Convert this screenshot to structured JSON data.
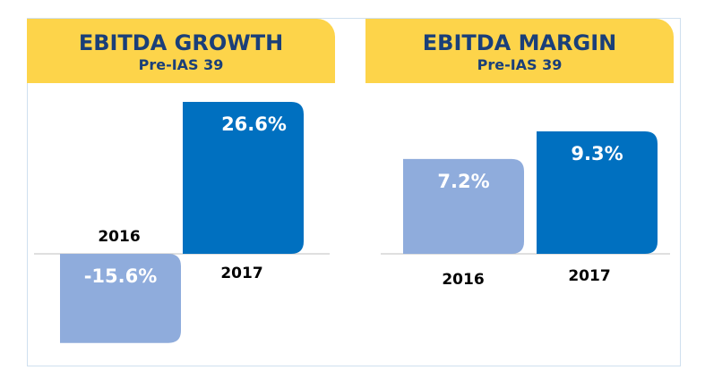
{
  "colors": {
    "header_bg": "#fdd44a",
    "header_text": "#1a3f79",
    "bar_2016": "#8facdc",
    "bar_2017": "#0070c0",
    "border": "#cfe0ef",
    "axis": "#bfbfbf"
  },
  "chart_data": [
    {
      "type": "bar",
      "title": "EBITDA GROWTH",
      "subtitle": "Pre-IAS 39",
      "categories": [
        "2016",
        "2017"
      ],
      "values": [
        -15.6,
        26.6
      ],
      "data_labels": [
        "-15.6%",
        "26.6%"
      ],
      "bar_colors": [
        "#8facdc",
        "#0070c0"
      ],
      "ylim": [
        -20,
        26.6
      ],
      "grid": false,
      "legend": "none"
    },
    {
      "type": "bar",
      "title": "EBITDA MARGIN",
      "subtitle": "Pre-IAS 39",
      "categories": [
        "2016",
        "2017"
      ],
      "values": [
        7.2,
        9.3
      ],
      "data_labels": [
        "7.2%",
        "9.3%"
      ],
      "bar_colors": [
        "#8facdc",
        "#0070c0"
      ],
      "ylim": [
        0,
        9.3
      ],
      "grid": false,
      "legend": "none"
    }
  ]
}
